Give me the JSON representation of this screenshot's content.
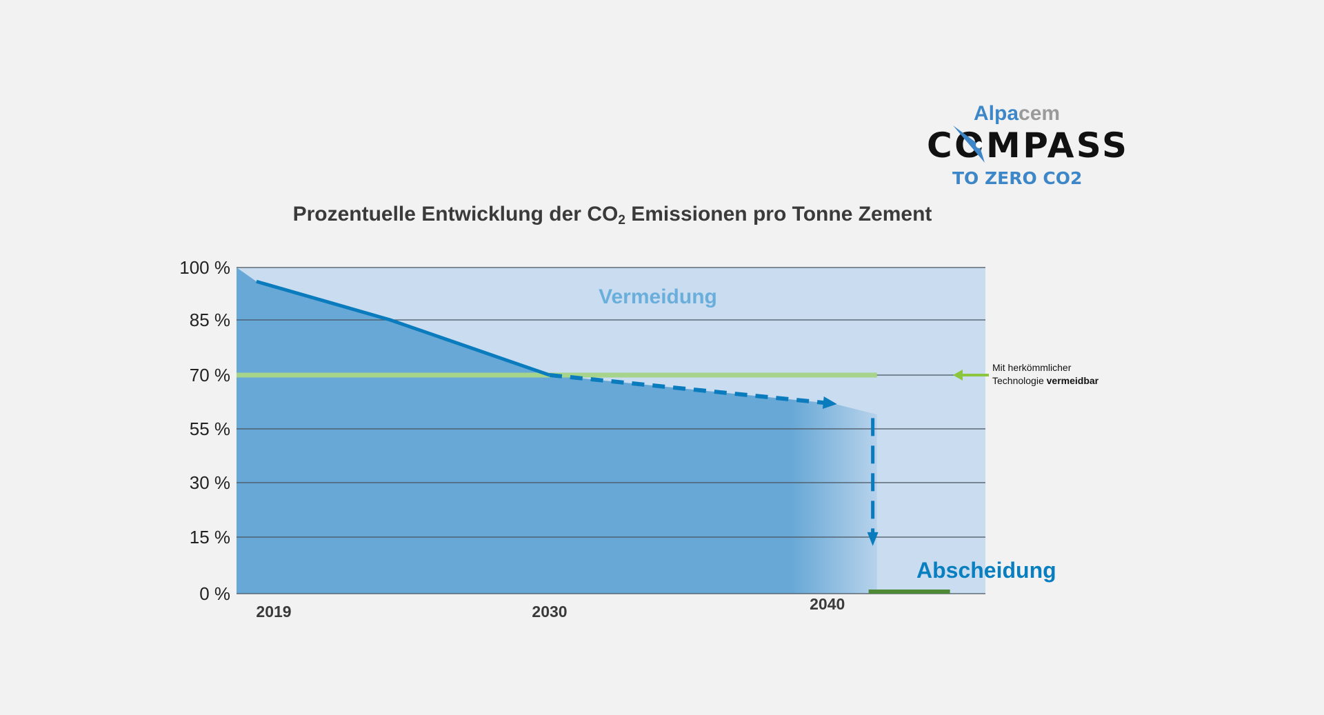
{
  "logo": {
    "brand": "Alpacem",
    "name": "COMPASS",
    "tagline": "TO ZERO CO2"
  },
  "colors": {
    "background": "#f2f2f2",
    "avoidance_area": "#c9dcf0",
    "emissions_area": "#68a8d6",
    "path_line": "#0a7bbd",
    "conventional_line": "#a6d48a",
    "capture_bar": "#4e8a35"
  },
  "chart_data": {
    "type": "area",
    "title": {
      "main": "Prozentuelle Entwicklung der CO",
      "sub": "2",
      "rest": " Emissionen pro Tonne Zement"
    },
    "y_ticks": [
      "100 %",
      "85 %",
      "70 %",
      "55 %",
      "30 %",
      "15 %",
      "0 %"
    ],
    "y_tick_values": [
      100,
      85,
      70,
      55,
      30,
      15,
      0
    ],
    "x_ticks": [
      "2019",
      "2030",
      "2040"
    ],
    "x_tick_values": [
      2019,
      2030,
      2040
    ],
    "xlim": [
      2019,
      2043
    ],
    "ylim": [
      0,
      100
    ],
    "grid": true,
    "emissions_area": [
      {
        "x": 2019,
        "y": 100
      },
      {
        "x": 2019.7,
        "y": 96
      },
      {
        "x": 2024.4,
        "y": 85
      },
      {
        "x": 2030,
        "y": 70
      },
      {
        "x": 2040,
        "y": 62
      },
      {
        "x": 2041.5,
        "y": 59
      }
    ],
    "path_solid": [
      {
        "x": 2019.7,
        "y": 96
      },
      {
        "x": 2024.4,
        "y": 85
      },
      {
        "x": 2030,
        "y": 70
      }
    ],
    "path_dashed": [
      {
        "x": 2030,
        "y": 70
      },
      {
        "x": 2040,
        "y": 62
      }
    ],
    "conventional_limit": {
      "y": 70,
      "x_end": 2041.5
    },
    "capture_arrow": {
      "x": 2041.5,
      "from": 58,
      "to": 13
    },
    "labels": {
      "avoidance": "Vermeidung",
      "capture": "Abscheidung"
    },
    "annotation": {
      "line1": "Mit herkömmlicher",
      "line2_normal": "Technologie ",
      "line2_bold": "vermeidbar"
    }
  }
}
